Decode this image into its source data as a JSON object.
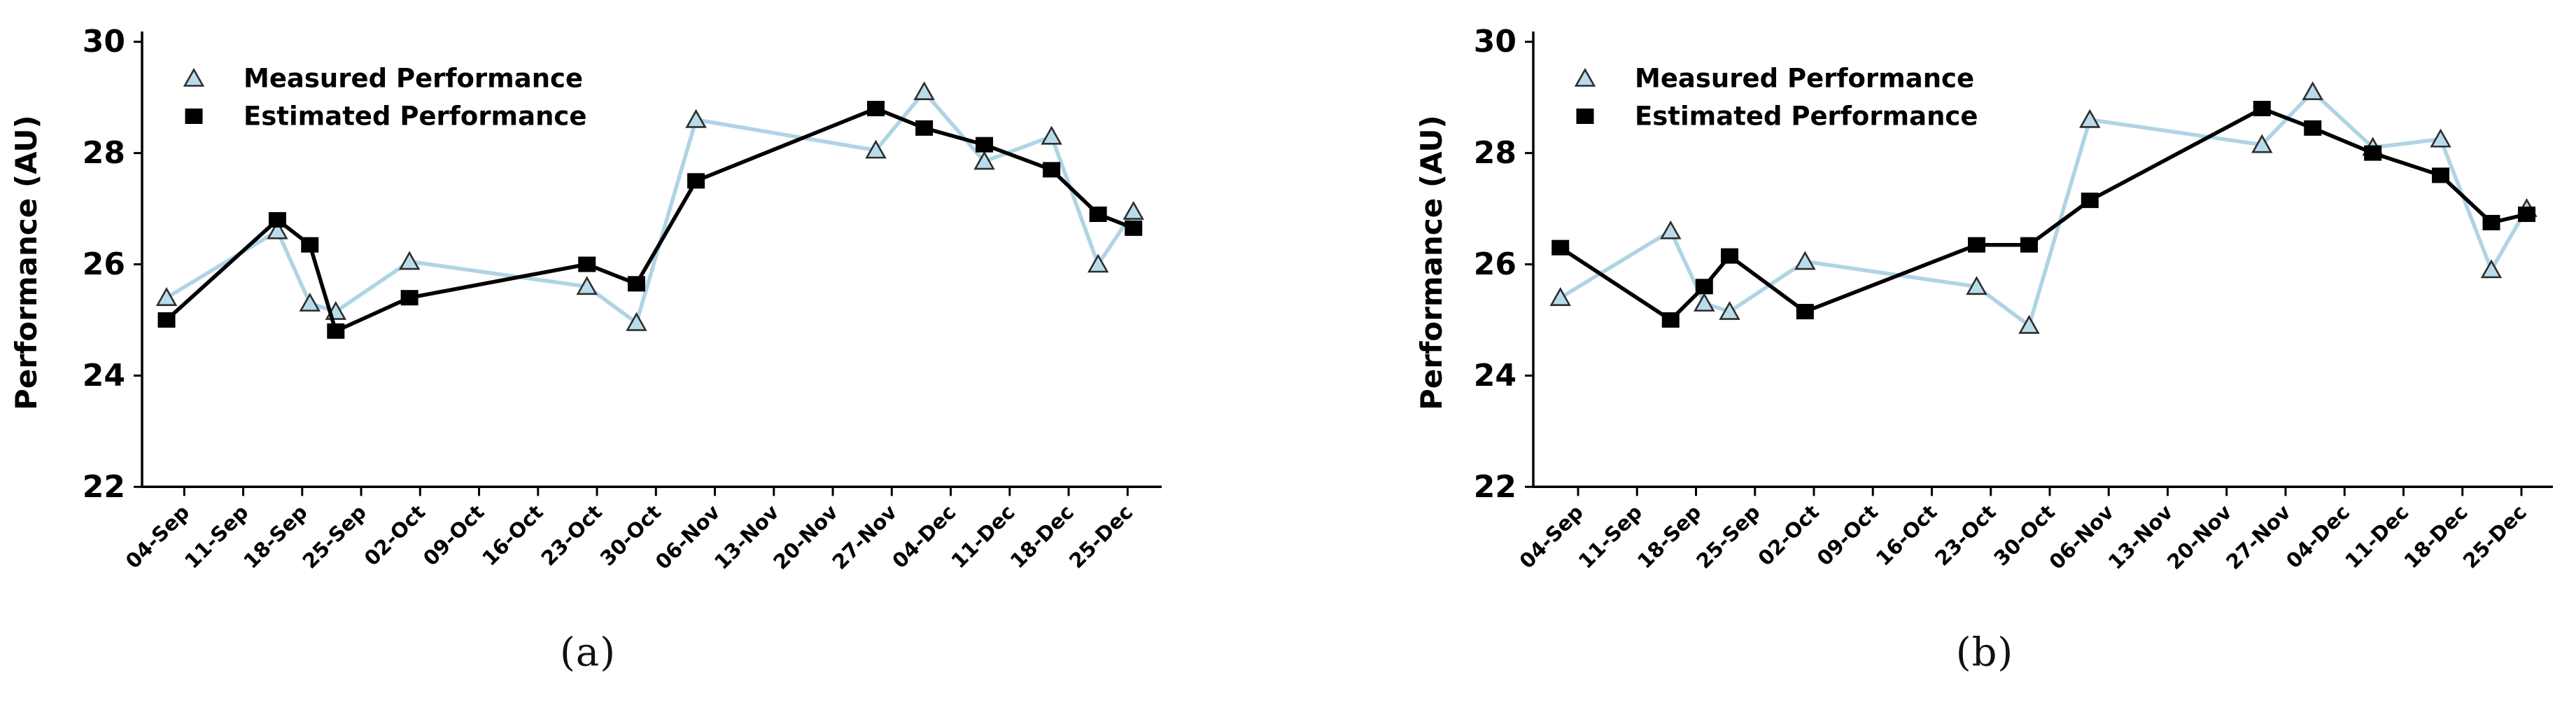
{
  "chart_data": [
    {
      "id": "a",
      "caption": "(a)",
      "type": "line",
      "ylabel": "Performance (AU)",
      "ylim": [
        22,
        30
      ],
      "y_ticks": [
        30,
        28,
        26,
        24,
        22
      ],
      "x_tick_labels": [
        "04-Sep",
        "11-Sep",
        "18-Sep",
        "25-Sep",
        "02-Oct",
        "09-Oct",
        "16-Oct",
        "23-Oct",
        "30-Oct",
        "06-Nov",
        "13-Nov",
        "20-Nov",
        "27-Nov",
        "04-Dec",
        "11-Dec",
        "18-Dec",
        "25-Dec"
      ],
      "x_unit": "weeks offset from 04-Sep tick (1 unit = 7 days)",
      "series": [
        {
          "name": "Measured Performance",
          "marker": "triangle",
          "x": [
            -0.3,
            1.58,
            2.13,
            2.57,
            3.82,
            6.83,
            7.67,
            8.68,
            11.73,
            12.55,
            13.57,
            14.71,
            15.5,
            16.1
          ],
          "values": [
            25.4,
            26.6,
            25.3,
            25.15,
            26.05,
            25.6,
            24.95,
            28.6,
            28.05,
            29.1,
            27.85,
            28.3,
            26.0,
            26.95
          ]
        },
        {
          "name": "Estimated Performance",
          "marker": "square",
          "x": [
            -0.3,
            1.58,
            2.13,
            2.57,
            3.82,
            6.83,
            7.67,
            8.68,
            11.73,
            12.55,
            13.57,
            14.71,
            15.5,
            16.1
          ],
          "values": [
            25.0,
            26.8,
            26.35,
            24.8,
            25.4,
            26.0,
            25.65,
            27.5,
            28.8,
            28.45,
            28.15,
            27.7,
            26.9,
            26.65
          ]
        }
      ]
    },
    {
      "id": "b",
      "caption": "(b)",
      "type": "line",
      "ylabel": "Performance (AU)",
      "ylim": [
        22,
        30
      ],
      "y_ticks": [
        30,
        28,
        26,
        24,
        22
      ],
      "x_tick_labels": [
        "04-Sep",
        "11-Sep",
        "18-Sep",
        "25-Sep",
        "02-Oct",
        "09-Oct",
        "16-Oct",
        "23-Oct",
        "30-Oct",
        "06-Nov",
        "13-Nov",
        "20-Nov",
        "27-Nov",
        "04-Dec",
        "11-Dec",
        "18-Dec",
        "25-Dec"
      ],
      "x_unit": "weeks offset from 04-Sep tick (1 unit = 7 days)",
      "series": [
        {
          "name": "Measured Performance",
          "marker": "triangle",
          "x": [
            -0.3,
            1.57,
            2.14,
            2.57,
            3.85,
            6.76,
            7.65,
            8.68,
            11.6,
            12.46,
            13.48,
            14.63,
            15.49,
            16.09
          ],
          "values": [
            25.4,
            26.6,
            25.3,
            25.15,
            26.05,
            25.6,
            24.9,
            28.6,
            28.15,
            29.1,
            28.1,
            28.25,
            25.9,
            27.0
          ]
        },
        {
          "name": "Estimated Performance",
          "marker": "square",
          "x": [
            -0.3,
            1.57,
            2.14,
            2.57,
            3.85,
            6.76,
            7.65,
            8.68,
            11.6,
            12.46,
            13.48,
            14.63,
            15.49,
            16.09
          ],
          "values": [
            26.3,
            25.0,
            25.6,
            26.15,
            25.15,
            26.35,
            26.35,
            27.15,
            28.8,
            28.45,
            28.0,
            27.6,
            26.75,
            26.9
          ]
        }
      ]
    }
  ],
  "legend": {
    "measured_label": "Measured Performance",
    "estimated_label": "Estimated Performance"
  },
  "colors": {
    "measured_line": "#AFD4E4",
    "measured_fill": "#B9DCEA",
    "measured_edge": "#2E2E2E",
    "estimated": "#000000",
    "axis": "#000000",
    "text": "#000000",
    "background": "#FFFFFF"
  }
}
